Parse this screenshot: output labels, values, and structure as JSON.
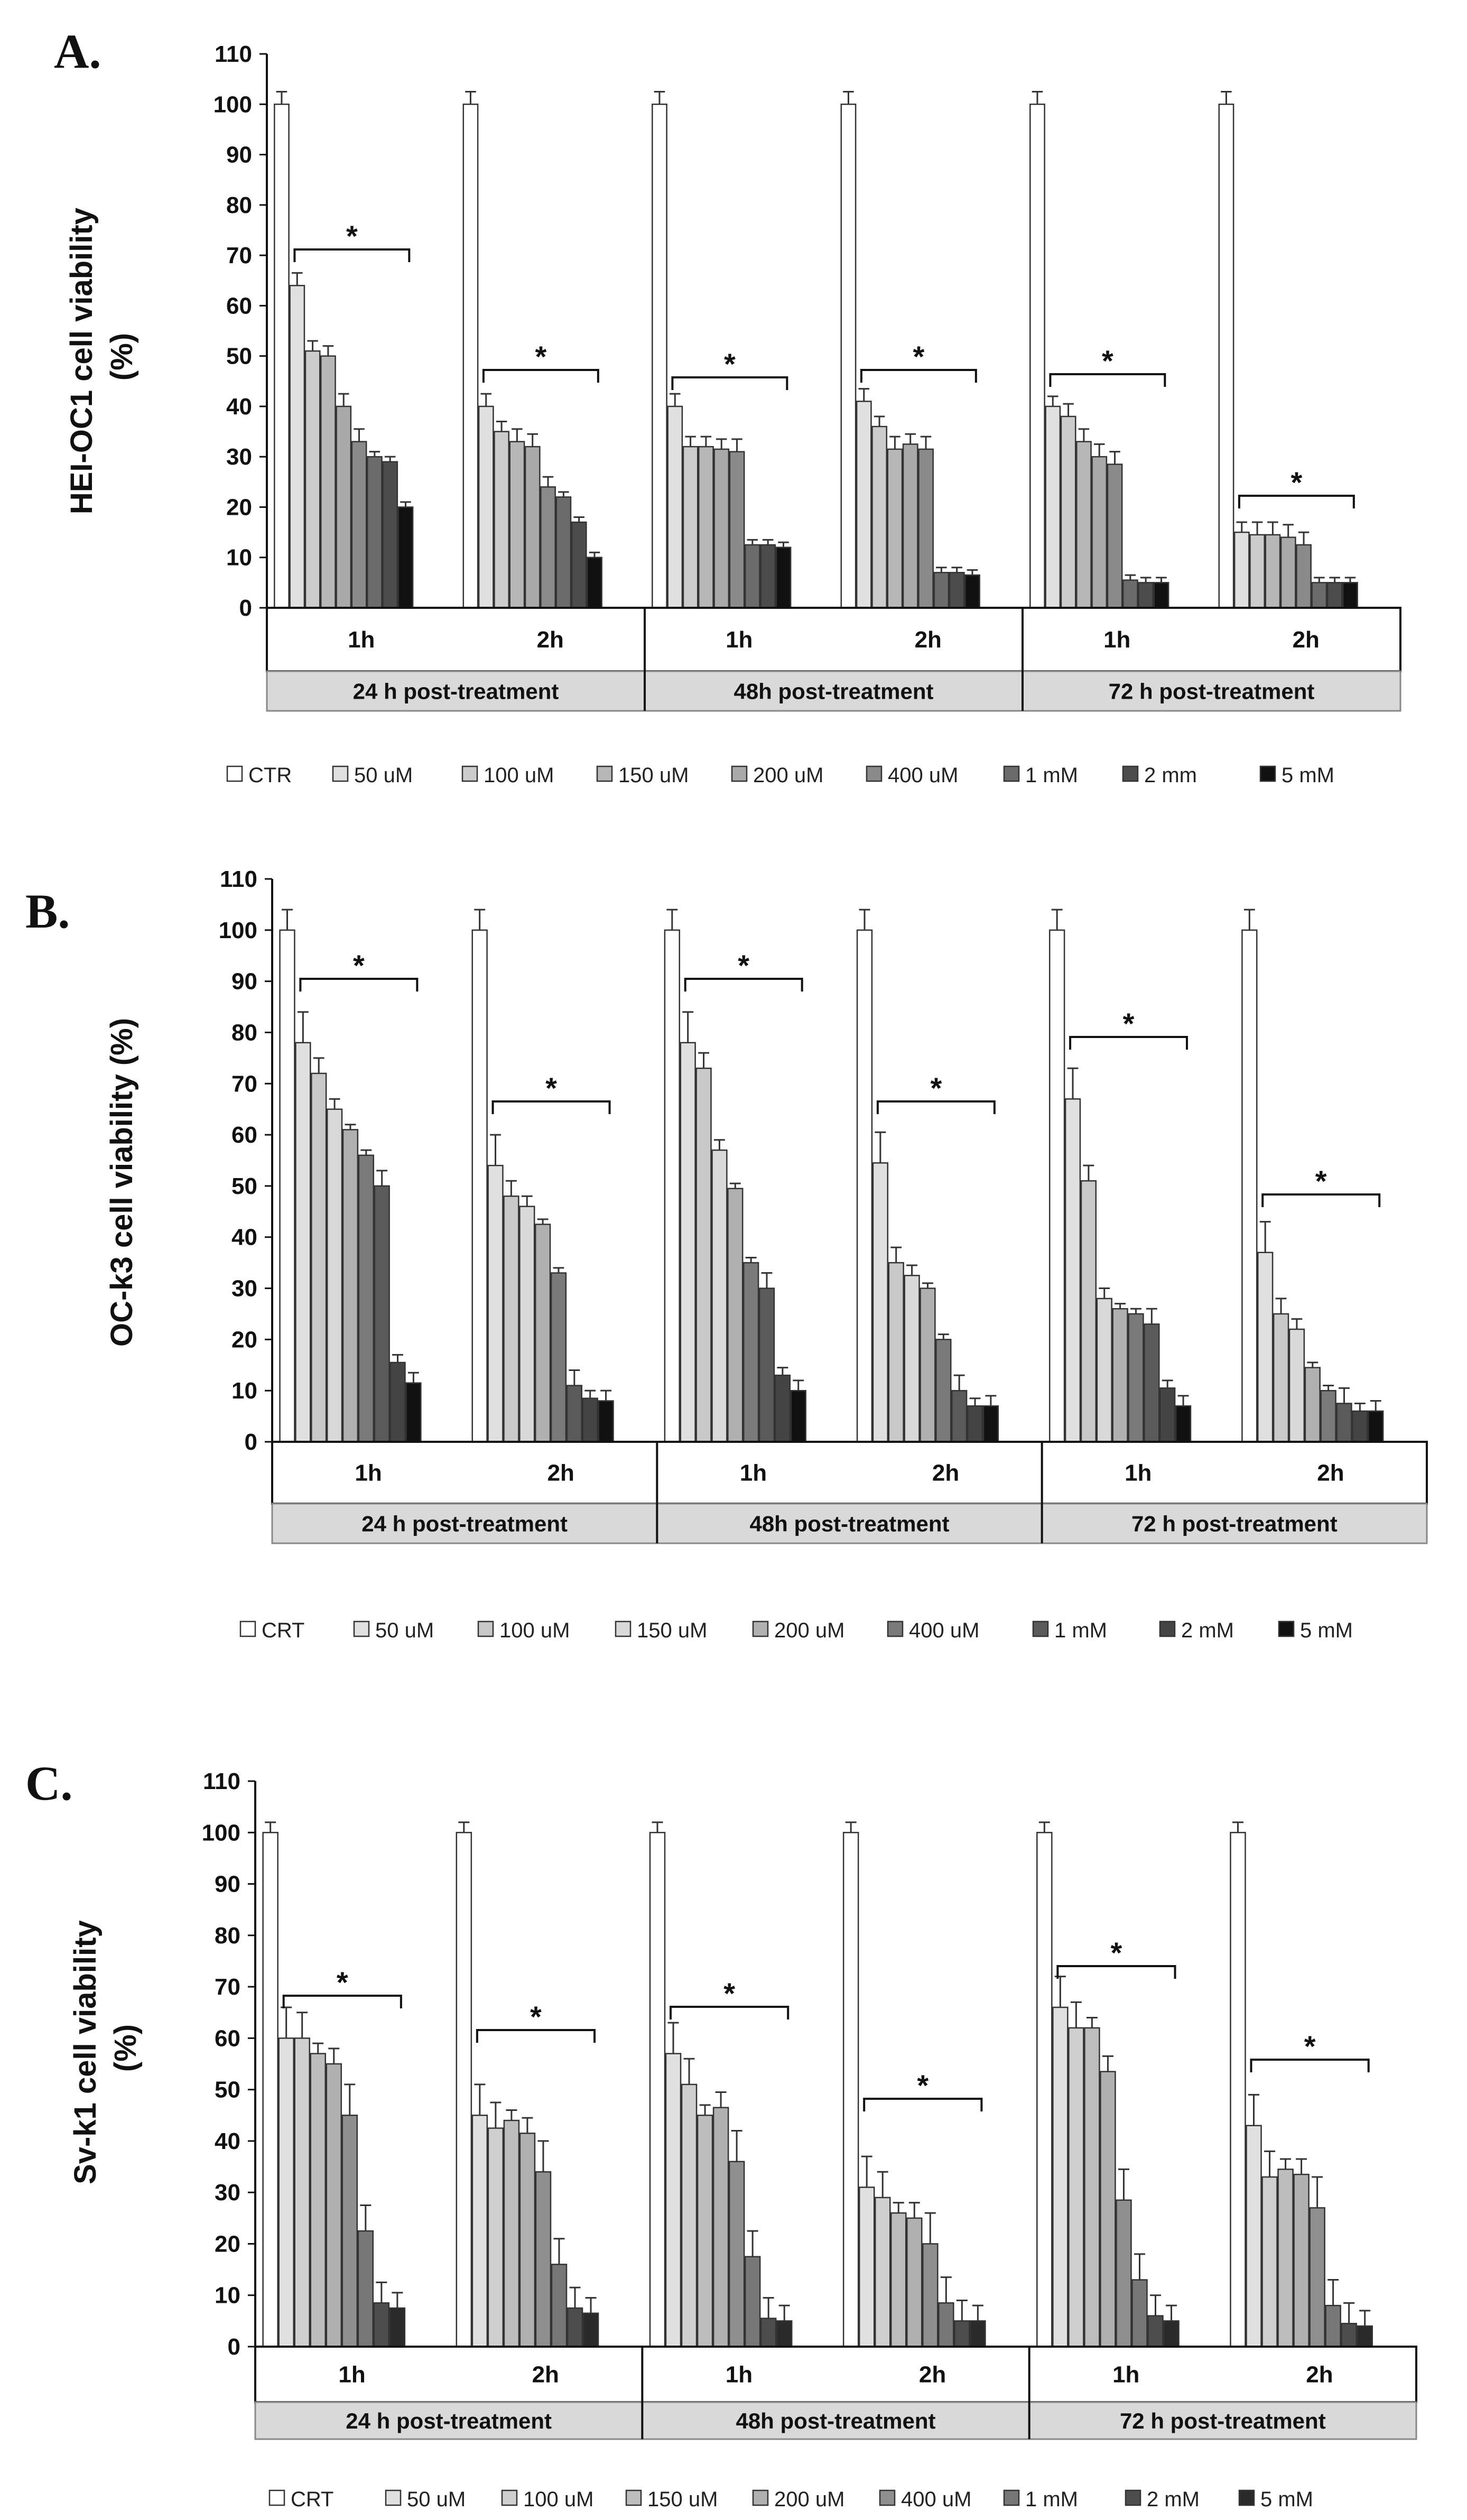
{
  "chart_data": [
    {
      "type": "bar",
      "panel_label": "A.",
      "ylabel_lines": [
        "HEI-OC1 cell viability",
        "(%)"
      ],
      "ylim": [
        0,
        110
      ],
      "yticks": [
        "0",
        "10",
        "20",
        "30",
        "40",
        "50",
        "60",
        "70",
        "80",
        "90",
        "100",
        "110"
      ],
      "subgroups": [
        "1h",
        "2h",
        "1h",
        "2h",
        "1h",
        "2h"
      ],
      "groups": [
        "24 h post-treatment",
        "48h post-treatment",
        "72 h post-treatment"
      ],
      "legend": [
        "CTR",
        "50 uM",
        "100 uM",
        "150 uM",
        "200 uM",
        "400 uM",
        "1 mM",
        "2 mm",
        "5 mM"
      ],
      "significance": [
        "*",
        "*",
        "*",
        "*",
        "*",
        "*"
      ],
      "series": [
        {
          "name": "CTR",
          "values": [
            100,
            100,
            100,
            100,
            100,
            100
          ],
          "errors": [
            2.5,
            2.5,
            2.5,
            2.5,
            2.5,
            2.5
          ]
        },
        {
          "name": "50 uM",
          "values": [
            64,
            40,
            40,
            41,
            40,
            15
          ],
          "errors": [
            2.5,
            2.5,
            2.5,
            2.5,
            2,
            2
          ]
        },
        {
          "name": "100 uM",
          "values": [
            51,
            35,
            32,
            36,
            38,
            14.5
          ],
          "errors": [
            2,
            2,
            2,
            2,
            2.5,
            2.5
          ]
        },
        {
          "name": "150 uM",
          "values": [
            50,
            33,
            32,
            31.5,
            33,
            14.5
          ],
          "errors": [
            2,
            2.5,
            2,
            2.5,
            2.5,
            2.5
          ]
        },
        {
          "name": "200 uM",
          "values": [
            40,
            32,
            31.5,
            32.5,
            30,
            14
          ],
          "errors": [
            2.5,
            2.5,
            2,
            2,
            2.5,
            2.5
          ]
        },
        {
          "name": "400 uM",
          "values": [
            33,
            24,
            31,
            31.5,
            28.5,
            12.5
          ],
          "errors": [
            2.5,
            2,
            2.5,
            2.5,
            2.5,
            2.5
          ]
        },
        {
          "name": "1 mM",
          "values": [
            30,
            22,
            12.5,
            7,
            5.5,
            5
          ],
          "errors": [
            1,
            1,
            1,
            1,
            1,
            1
          ]
        },
        {
          "name": "2 mm",
          "values": [
            29,
            17,
            12.5,
            7,
            5,
            5
          ],
          "errors": [
            1,
            1,
            1,
            1,
            1,
            1
          ]
        },
        {
          "name": "5 mM",
          "values": [
            20,
            10,
            12,
            6.5,
            5,
            5
          ],
          "errors": [
            1,
            1,
            1,
            1,
            1,
            1
          ]
        }
      ]
    },
    {
      "type": "bar",
      "panel_label": "B.",
      "ylabel_lines": [
        "OC-k3 cell viability (%)"
      ],
      "ylim": [
        0,
        110
      ],
      "yticks": [
        "0",
        "10",
        "20",
        "30",
        "40",
        "50",
        "60",
        "70",
        "80",
        "90",
        "100",
        "110"
      ],
      "subgroups": [
        "1h",
        "2h",
        "1h",
        "2h",
        "1h",
        "2h"
      ],
      "groups": [
        "24 h post-treatment",
        "48h post-treatment",
        "72 h post-treatment"
      ],
      "legend": [
        "CRT",
        "50 uM",
        "100 uM",
        "150 uM",
        "200 uM",
        "400 uM",
        "1 mM",
        "2 mM",
        "5 mM"
      ],
      "significance": [
        "*",
        "*",
        "*",
        "*",
        "*",
        "*"
      ],
      "series": [
        {
          "name": "CRT",
          "values": [
            100,
            100,
            100,
            100,
            100,
            100
          ],
          "errors": [
            4,
            4,
            4,
            4,
            4,
            4
          ]
        },
        {
          "name": "50 uM",
          "values": [
            78,
            54,
            78,
            54.5,
            67,
            37
          ],
          "errors": [
            6,
            6,
            6,
            6,
            6,
            6
          ]
        },
        {
          "name": "100 uM",
          "values": [
            72,
            48,
            73,
            35,
            51,
            25
          ],
          "errors": [
            3,
            3,
            3,
            3,
            3,
            3
          ]
        },
        {
          "name": "150 uM",
          "values": [
            65,
            46,
            57,
            32.5,
            28,
            22
          ],
          "errors": [
            2,
            2,
            2,
            2,
            2,
            2
          ]
        },
        {
          "name": "200 uM",
          "values": [
            61,
            42.5,
            49.5,
            30,
            26,
            14.5
          ],
          "errors": [
            1,
            1,
            1,
            1,
            1,
            1
          ]
        },
        {
          "name": "400 uM",
          "values": [
            56,
            33,
            35,
            20,
            25,
            10
          ],
          "errors": [
            1,
            1,
            1,
            1,
            1,
            1
          ]
        },
        {
          "name": "1 mM",
          "values": [
            50,
            11,
            30,
            10,
            23,
            7.5
          ],
          "errors": [
            3,
            3,
            3,
            3,
            3,
            3
          ]
        },
        {
          "name": "2 mM",
          "values": [
            15.5,
            8.5,
            13,
            7,
            10.5,
            6
          ],
          "errors": [
            1.5,
            1.5,
            1.5,
            1.5,
            1.5,
            1.5
          ]
        },
        {
          "name": "5 mM",
          "values": [
            11.5,
            8,
            10,
            7,
            7,
            6
          ],
          "errors": [
            2,
            2,
            2,
            2,
            2,
            2
          ]
        }
      ]
    },
    {
      "type": "bar",
      "panel_label": "C.",
      "ylabel_lines": [
        "Sv-k1 cell viability",
        "(%)"
      ],
      "ylim": [
        0,
        110
      ],
      "yticks": [
        "0",
        "10",
        "20",
        "30",
        "40",
        "50",
        "60",
        "70",
        "80",
        "90",
        "100",
        "110"
      ],
      "subgroups": [
        "1h",
        "2h",
        "1h",
        "2h",
        "1h",
        "2h"
      ],
      "groups": [
        "24 h post-treatment",
        "48h post-treatment",
        "72 h post-treatment"
      ],
      "legend": [
        "CRT",
        "50 uM",
        "100 uM",
        "150 uM",
        "200 uM",
        "400 uM",
        "1 mM",
        "2 mM",
        "5 mM"
      ],
      "significance": [
        "*",
        "*",
        "*",
        "*",
        "*",
        "*"
      ],
      "series": [
        {
          "name": "CRT",
          "values": [
            100,
            100,
            100,
            100,
            100,
            100
          ],
          "errors": [
            2,
            2,
            2,
            2,
            2,
            2
          ]
        },
        {
          "name": "50 uM",
          "values": [
            60,
            45,
            57,
            31,
            66,
            43
          ],
          "errors": [
            6,
            6,
            6,
            6,
            6,
            6
          ]
        },
        {
          "name": "100 uM",
          "values": [
            60,
            42.5,
            51,
            29,
            62,
            33
          ],
          "errors": [
            5,
            5,
            5,
            5,
            5,
            5
          ]
        },
        {
          "name": "150 uM",
          "values": [
            57,
            44,
            45,
            26,
            62,
            34.5
          ],
          "errors": [
            2,
            2,
            2,
            2,
            2,
            2
          ]
        },
        {
          "name": "200 uM",
          "values": [
            55,
            41.5,
            46.5,
            25,
            53.5,
            33.5
          ],
          "errors": [
            3,
            3,
            3,
            3,
            3,
            3
          ]
        },
        {
          "name": "400 uM",
          "values": [
            45,
            34,
            36,
            20,
            28.5,
            27
          ],
          "errors": [
            6,
            6,
            6,
            6,
            6,
            6
          ]
        },
        {
          "name": "1 mM",
          "values": [
            22.5,
            16,
            17.5,
            8.5,
            13,
            8
          ],
          "errors": [
            5,
            5,
            5,
            5,
            5,
            5
          ]
        },
        {
          "name": "2 mM",
          "values": [
            8.5,
            7.5,
            5.5,
            5,
            6,
            4.5
          ],
          "errors": [
            4,
            4,
            4,
            4,
            4,
            4
          ]
        },
        {
          "name": "5 mM",
          "values": [
            7.5,
            6.5,
            5,
            5,
            5,
            4
          ],
          "errors": [
            3,
            3,
            3,
            3,
            3,
            3
          ]
        }
      ]
    }
  ],
  "colors": {
    "series": [
      "#ffffff",
      "#e0e0e0",
      "#cccccc",
      "#b7b7b7",
      "#a9a9a9",
      "#8a8a8a",
      "#6b6b6b",
      "#4c4c4c",
      "#111111"
    ],
    "series_b": [
      "#ffffff",
      "#e0e0e0",
      "#c8c8c8",
      "#d9d9d9",
      "#b0b0b0",
      "#7a7a7a",
      "#5a5a5a",
      "#444444",
      "#111111"
    ],
    "series_c": [
      "#ffffff",
      "#e0e0e0",
      "#cfcfcf",
      "#bdbdbd",
      "#b0b0b0",
      "#8f8f8f",
      "#777777",
      "#4d4d4d",
      "#2a2a2a"
    ],
    "group_fill": "#d9d9d9",
    "axis": "#111111"
  }
}
